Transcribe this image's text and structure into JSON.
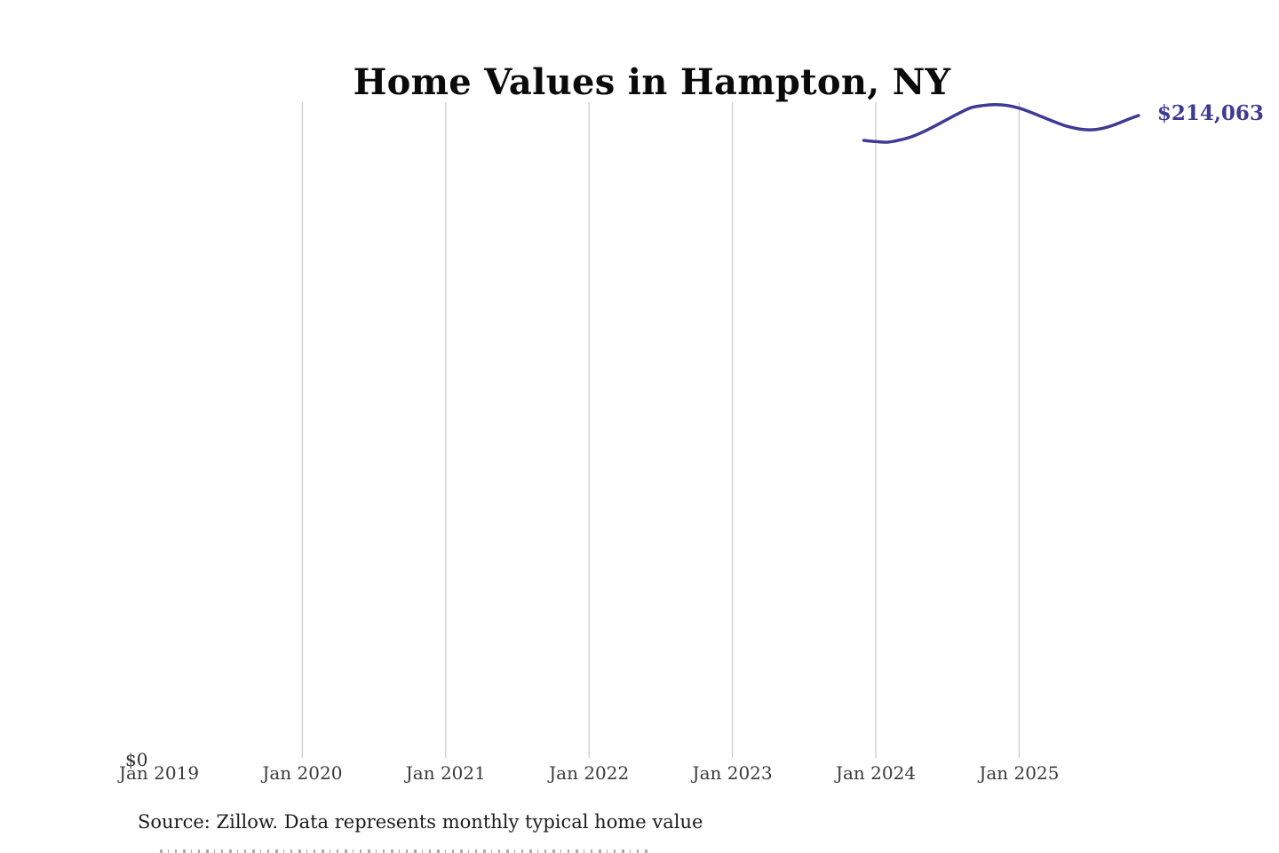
{
  "chart_data": {
    "type": "line",
    "title": "Home Values in Hampton, NY",
    "series_name": "Monthly typical home value",
    "unit": "USD",
    "x": [
      "Dec 2023",
      "Jan 2024",
      "Feb 2024",
      "Mar 2024",
      "Apr 2024",
      "May 2024",
      "Jun 2024",
      "Jul 2024",
      "Aug 2024",
      "Sep 2024",
      "Oct 2024",
      "Nov 2024",
      "Dec 2024",
      "Jan 2025",
      "Feb 2025",
      "Mar 2025",
      "Apr 2025",
      "May 2025",
      "Jun 2025",
      "Jul 2025",
      "Aug 2025",
      "Sep 2025",
      "Oct 2025",
      "Nov 2025"
    ],
    "values": [
      205800,
      205400,
      205200,
      205900,
      207000,
      208700,
      210700,
      212800,
      214900,
      216700,
      217400,
      217700,
      217400,
      216500,
      215100,
      213500,
      211900,
      210500,
      209600,
      209300,
      209800,
      211000,
      212600,
      214063
    ],
    "end_value": 214063,
    "end_label": "$214,063",
    "x_tick_labels": [
      "Jan 2019",
      "Jan 2020",
      "Jan 2021",
      "Jan 2022",
      "Jan 2023",
      "Jan 2024",
      "Jan 2025"
    ],
    "y_tick_labels": [
      "$0"
    ],
    "ylim": [
      0,
      218000
    ],
    "legend": "none",
    "grid": "vertical gridlines at each January, no gridline at Jan 2019, no axis lines",
    "colors": {
      "line": "#3e3b94",
      "end_label": "#3e3b94",
      "gridline": "#cdcdcd",
      "title": "#0a0a0a",
      "axis_text": "#3b3b3b",
      "source_text": "#1c1c1c"
    }
  },
  "footer": {
    "source": "Source: Zillow. Data represents monthly typical home value"
  }
}
